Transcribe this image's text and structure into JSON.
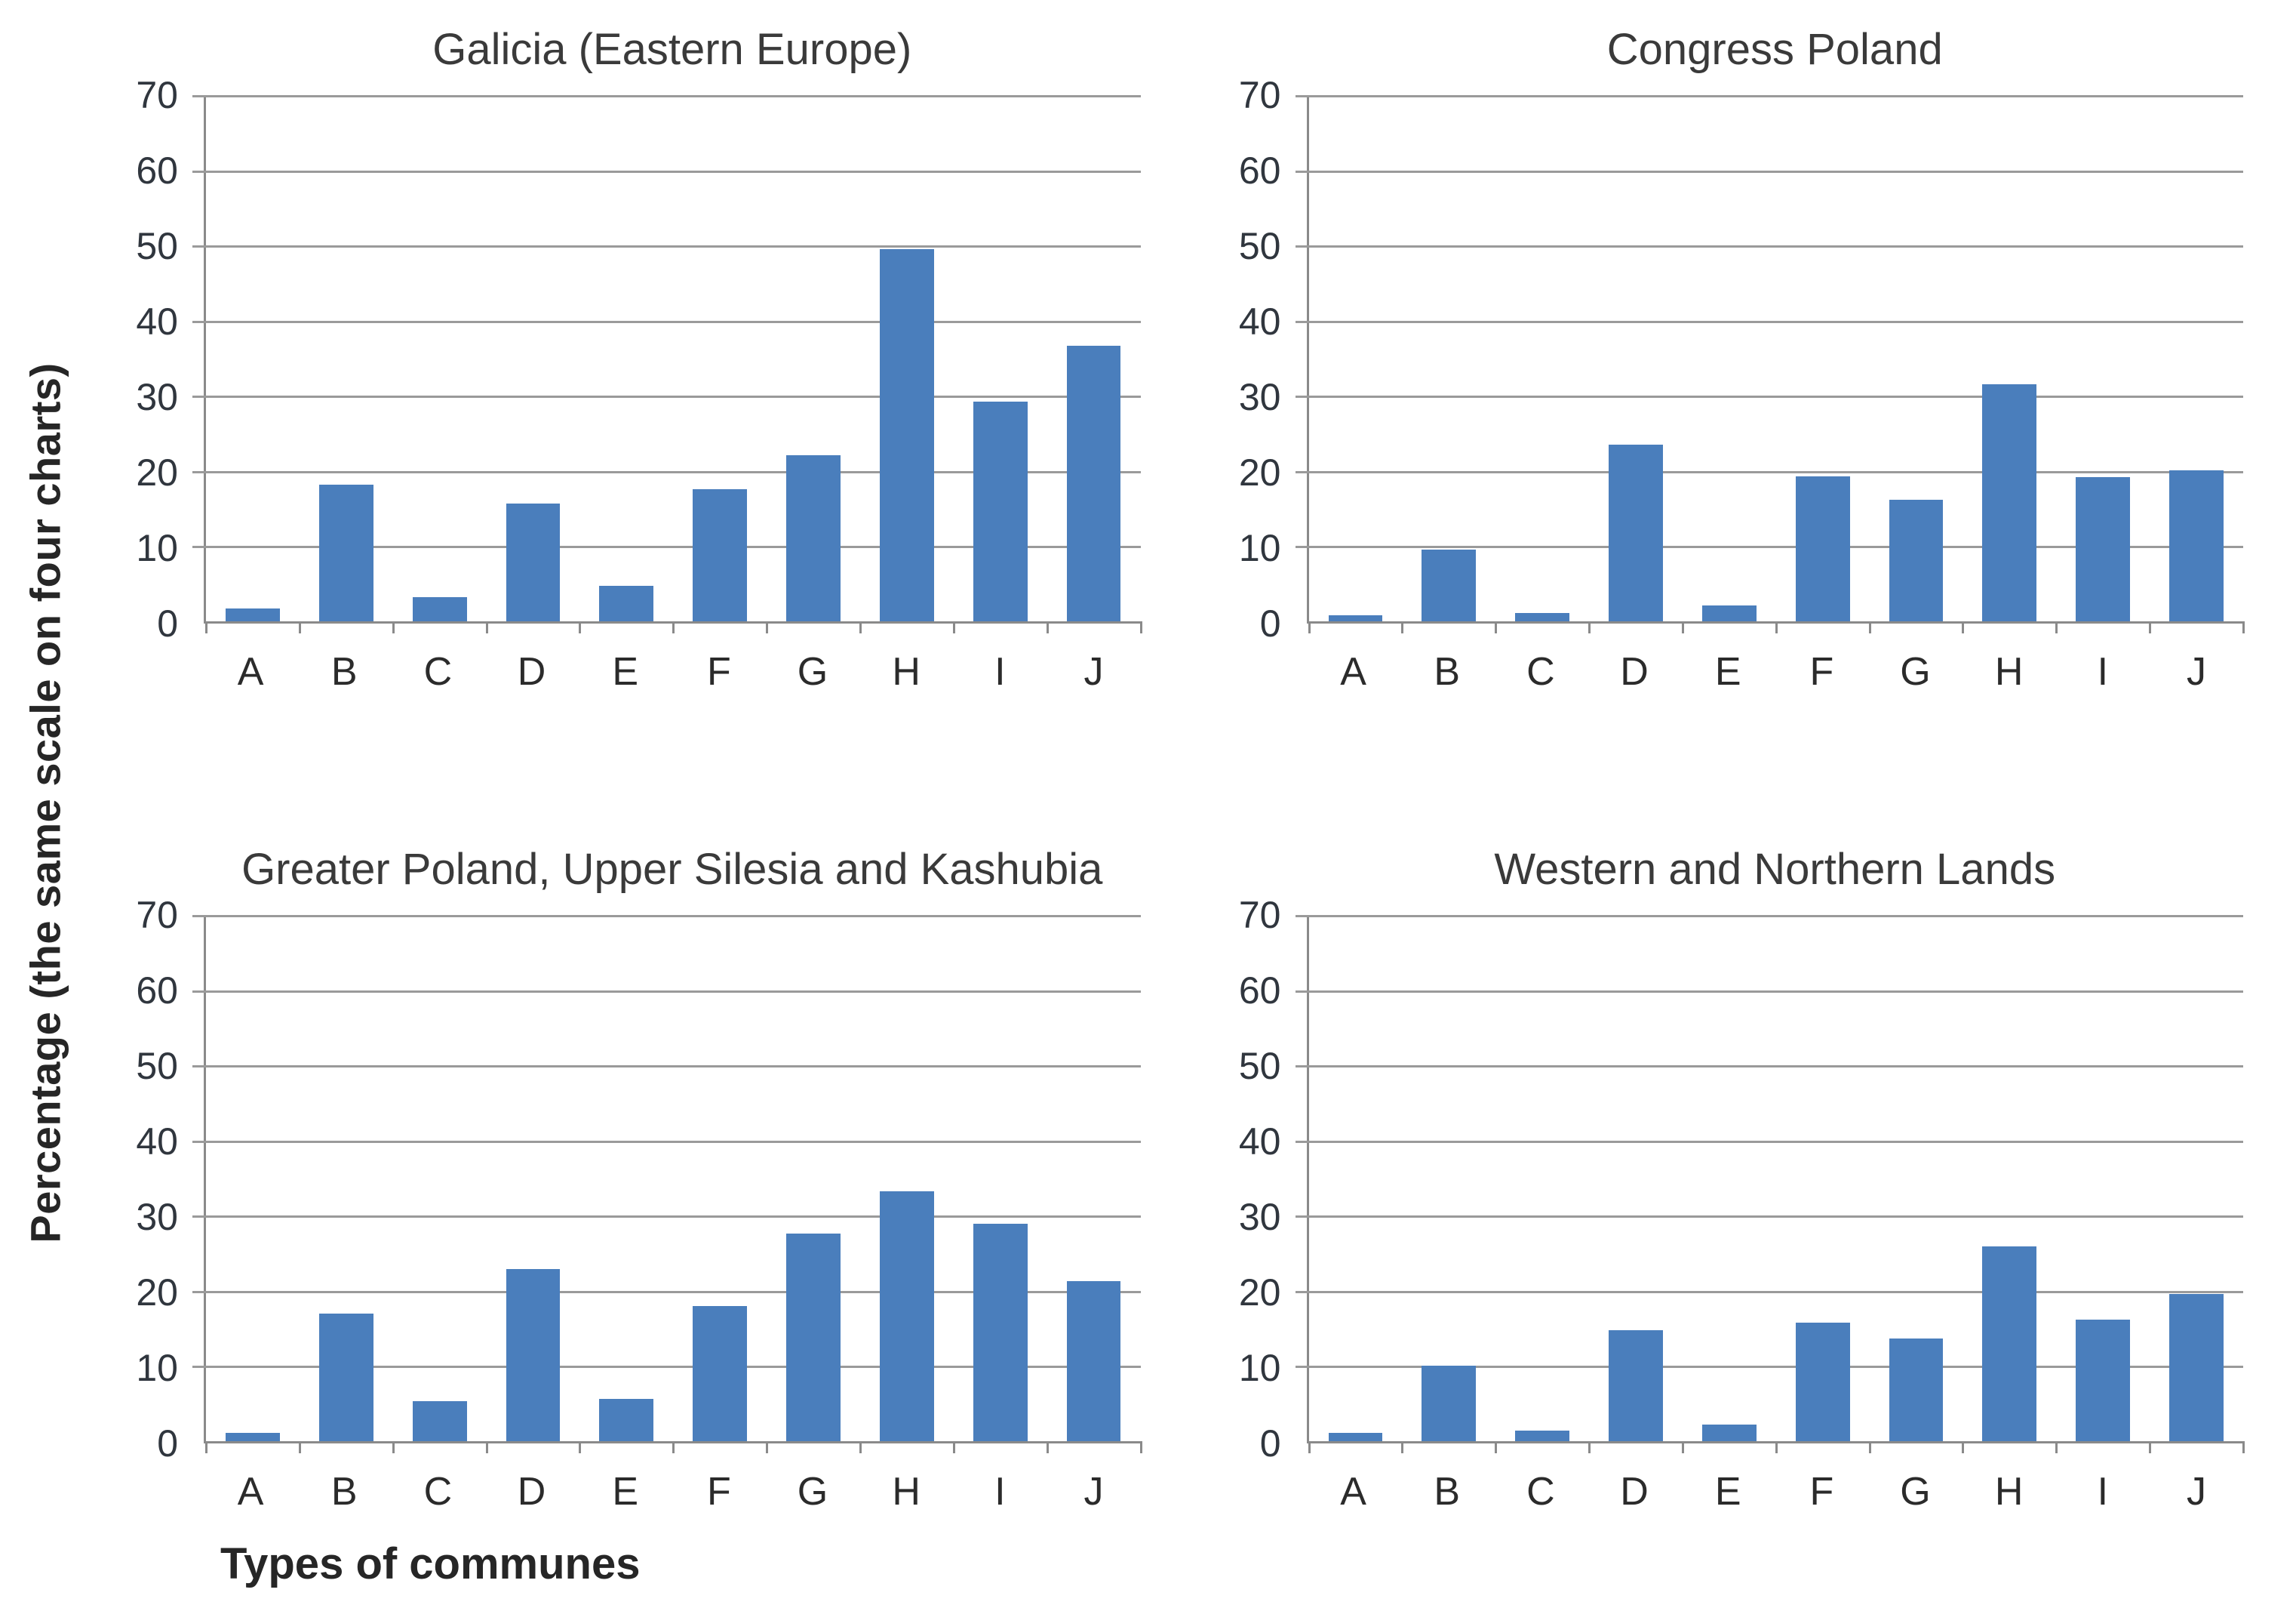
{
  "figure": {
    "ylabel": "Percentage (the same scale on four charts)",
    "xlabel": "Types of communes"
  },
  "axis": {
    "ymin": 0,
    "ymax": 70,
    "ytick_step": 10,
    "yticks": [
      70,
      60,
      50,
      40,
      30,
      20,
      10,
      0
    ],
    "grid": true
  },
  "colors": {
    "bar": "#4a7ebc",
    "gridline": "#9a9a9a",
    "axis_line": "#8a8a8a",
    "text": "#2f2f2f",
    "background": "#ffffff"
  },
  "chart_data": [
    {
      "type": "bar",
      "position": "top-left",
      "title": "Galicia (Eastern Europe)",
      "categories": [
        "A",
        "B",
        "C",
        "D",
        "E",
        "F",
        "G",
        "H",
        "I",
        "J"
      ],
      "values": [
        1.7,
        18.2,
        3.2,
        15.7,
        4.7,
        17.6,
        22.1,
        49.5,
        29.2,
        36.7
      ],
      "xlabel": "",
      "ylabel": "",
      "ylim": [
        0,
        70
      ],
      "grid": true,
      "legend": "none"
    },
    {
      "type": "bar",
      "position": "top-right",
      "title": "Congress Poland",
      "categories": [
        "A",
        "B",
        "C",
        "D",
        "E",
        "F",
        "G",
        "H",
        "I",
        "J"
      ],
      "values": [
        0.8,
        9.5,
        1.1,
        23.5,
        2.1,
        19.3,
        16.2,
        31.5,
        19.2,
        20.1
      ],
      "xlabel": "",
      "ylabel": "",
      "ylim": [
        0,
        70
      ],
      "grid": true,
      "legend": "none"
    },
    {
      "type": "bar",
      "position": "bottom-left",
      "title": "Greater Poland, Upper Silesia and Kashubia",
      "categories": [
        "A",
        "B",
        "C",
        "D",
        "E",
        "F",
        "G",
        "H",
        "I",
        "J"
      ],
      "values": [
        1.1,
        17.0,
        5.3,
        22.9,
        5.6,
        18.0,
        27.6,
        33.2,
        28.9,
        21.3
      ],
      "xlabel": "Types of communes",
      "ylabel": "",
      "ylim": [
        0,
        70
      ],
      "grid": true,
      "legend": "none"
    },
    {
      "type": "bar",
      "position": "bottom-right",
      "title": "Western and Northern Lands",
      "categories": [
        "A",
        "B",
        "C",
        "D",
        "E",
        "F",
        "G",
        "H",
        "I",
        "J"
      ],
      "values": [
        1.1,
        10.0,
        1.4,
        14.8,
        2.2,
        15.8,
        13.7,
        25.9,
        16.2,
        19.6
      ],
      "xlabel": "",
      "ylabel": "",
      "ylim": [
        0,
        70
      ],
      "grid": true,
      "legend": "none"
    }
  ]
}
